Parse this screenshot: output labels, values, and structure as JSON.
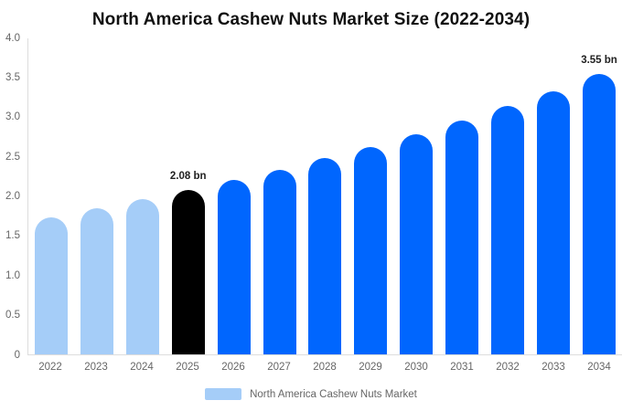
{
  "title": "North America Cashew Nuts Market Size (2022-2034)",
  "chart_data": {
    "type": "bar",
    "title": "North America Cashew Nuts Market Size (2022-2034)",
    "categories": [
      "2022",
      "2023",
      "2024",
      "2025",
      "2026",
      "2027",
      "2028",
      "2029",
      "2030",
      "2031",
      "2032",
      "2033",
      "2034"
    ],
    "values": [
      1.74,
      1.85,
      1.96,
      2.08,
      2.21,
      2.34,
      2.48,
      2.63,
      2.79,
      2.96,
      3.14,
      3.33,
      3.55
    ],
    "unit": "bn",
    "xlabel": "",
    "ylabel": "",
    "ylim": [
      0,
      4
    ],
    "yticks": [
      "4.0",
      "3.5",
      "3.0",
      "2.5",
      "2.0",
      "1.5",
      "1.0",
      "0.5",
      "0"
    ],
    "grid": false,
    "legend_position": "bottom",
    "bar_colors": [
      "#A5CDF8",
      "#A5CDF8",
      "#A5CDF8",
      "#000000",
      "#0066FE",
      "#0066FE",
      "#0066FE",
      "#0066FE",
      "#0066FE",
      "#0066FE",
      "#0066FE",
      "#0066FE",
      "#0066FE"
    ],
    "annotations": [
      {
        "category": "2025",
        "text": "2.08 bn"
      },
      {
        "category": "2034",
        "text": "3.55 bn"
      }
    ]
  },
  "legend": {
    "label": "North America Cashew Nuts Market",
    "swatch_color": "#A5CDF8"
  },
  "colors": {
    "series_past": "#A5CDF8",
    "series_highlight": "#000000",
    "series_forecast": "#0066FE",
    "axis_line": "#DDDDDD",
    "tick_text": "#666666",
    "annotation_text": "#222222",
    "background": "#FFFFFF"
  }
}
